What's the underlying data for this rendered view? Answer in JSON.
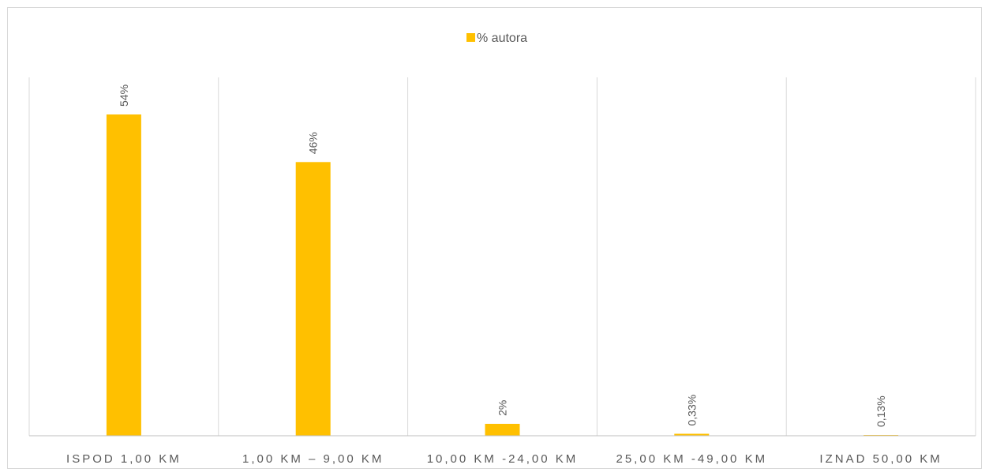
{
  "chart_data": {
    "type": "bar",
    "title": "",
    "xlabel": "",
    "ylabel": "",
    "categories": [
      "ISPOD 1,00 KM",
      "1,00 KM – 9,00 KM",
      "10,00 KM -24,00 KM",
      "25,00 KM -49,00 KM",
      "IZNAD 50,00 KM"
    ],
    "series": [
      {
        "name": "% autora",
        "values": [
          54,
          46,
          2,
          0.33,
          0.13
        ],
        "labels": [
          "54%",
          "46%",
          "2%",
          "0,33%",
          "0,13%"
        ],
        "color": "#FFC000"
      }
    ],
    "ylim": [
      0,
      60
    ],
    "grid": "vertical category separators",
    "legend_position": "top",
    "label_orientation": "rotated-vertical"
  },
  "colors": {
    "bar": "#FFC000",
    "separator": "#d9d9d9",
    "axis": "#bfbfbf",
    "text": "#595959"
  }
}
